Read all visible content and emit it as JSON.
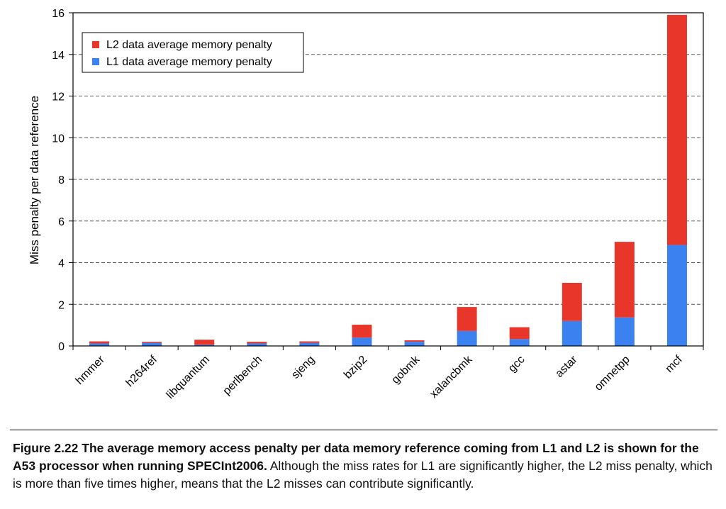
{
  "chart_data": {
    "type": "bar",
    "stacked": true,
    "title": "",
    "xlabel": "",
    "ylabel": "Miss penalty per data reference",
    "ylim": [
      0,
      16
    ],
    "yticks": [
      0,
      2,
      4,
      6,
      8,
      10,
      12,
      14,
      16
    ],
    "grid": "horizontal dashed",
    "legend_position": "top-left",
    "categories": [
      "hmmer",
      "h264ref",
      "libquantum",
      "perlbench",
      "sjeng",
      "bzip2",
      "gobmk",
      "xalancbmk",
      "gcc",
      "astar",
      "omnetpp",
      "mcf"
    ],
    "series": [
      {
        "name": "L1 data average memory penalty",
        "color": "#3b82f0",
        "values": [
          0.12,
          0.15,
          0.06,
          0.12,
          0.15,
          0.4,
          0.2,
          0.72,
          0.33,
          1.2,
          1.37,
          4.85
        ]
      },
      {
        "name": "L2 data average memory penalty",
        "color": "#e8372a",
        "values": [
          0.1,
          0.05,
          0.24,
          0.08,
          0.07,
          0.62,
          0.07,
          1.15,
          0.57,
          1.83,
          3.63,
          11.05
        ]
      }
    ],
    "legend_order": [
      "L2 data average memory penalty",
      "L1 data average memory penalty"
    ]
  },
  "caption": {
    "bold": "Figure 2.22  The average memory access penalty per data memory reference coming from L1 and L2 is shown for the A53 processor when running SPECInt2006.",
    "normal": " Although the miss rates for L1 are significantly higher, the L2 miss penalty, which is more than five times higher, means that the L2 misses can contribute significantly."
  }
}
